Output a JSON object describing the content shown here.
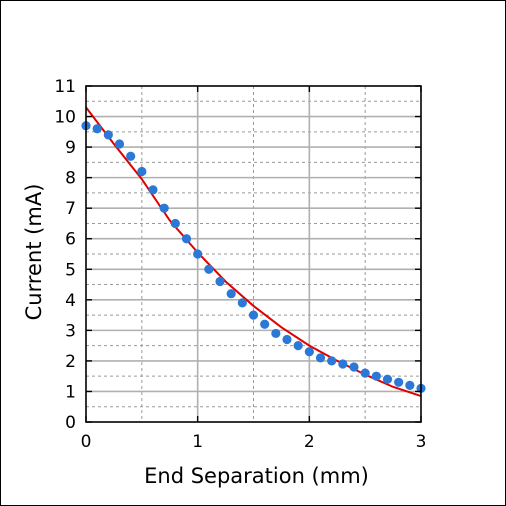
{
  "chart_data": {
    "type": "scatter",
    "title": "",
    "xlabel": "End Separation (mm)",
    "ylabel": "Current (mA)",
    "xlim": [
      0,
      3
    ],
    "ylim": [
      0,
      11
    ],
    "x_ticks": [
      0,
      1,
      2,
      3
    ],
    "y_ticks": [
      0,
      1,
      2,
      3,
      4,
      5,
      6,
      7,
      8,
      9,
      10,
      11
    ],
    "x_tick_labels": [
      "0",
      "1",
      "2",
      "3"
    ],
    "y_tick_labels": [
      "0",
      "1",
      "2",
      "3",
      "4",
      "5",
      "6",
      "7",
      "8",
      "9",
      "10",
      "11"
    ],
    "grid": true,
    "minor_grid": true,
    "legend": "none",
    "series": [
      {
        "kind": "points",
        "color": "#2b78d6",
        "x": [
          0,
          0.1,
          0.2,
          0.3,
          0.4,
          0.5,
          0.6,
          0.7,
          0.8,
          0.9,
          1.0,
          1.1,
          1.2,
          1.3,
          1.4,
          1.5,
          1.6,
          1.7,
          1.8,
          1.9,
          2.0,
          2.1,
          2.2,
          2.3,
          2.4,
          2.5,
          2.6,
          2.7,
          2.8,
          2.9,
          3.0
        ],
        "y": [
          9.7,
          9.6,
          9.4,
          9.1,
          8.7,
          8.2,
          7.6,
          7.0,
          6.5,
          6.0,
          5.5,
          5.0,
          4.6,
          4.2,
          3.9,
          3.5,
          3.2,
          2.9,
          2.7,
          2.5,
          2.3,
          2.1,
          2.0,
          1.9,
          1.8,
          1.6,
          1.5,
          1.4,
          1.3,
          1.2,
          1.1
        ]
      },
      {
        "kind": "line",
        "color": "#e00000",
        "x": [
          0,
          0.25,
          0.5,
          0.75,
          1.0,
          1.25,
          1.5,
          1.75,
          2.0,
          2.25,
          2.5,
          2.75,
          3.0
        ],
        "y": [
          10.3,
          9.1,
          7.95,
          6.6,
          5.55,
          4.6,
          3.8,
          3.1,
          2.5,
          2.0,
          1.55,
          1.15,
          0.85
        ]
      }
    ]
  }
}
